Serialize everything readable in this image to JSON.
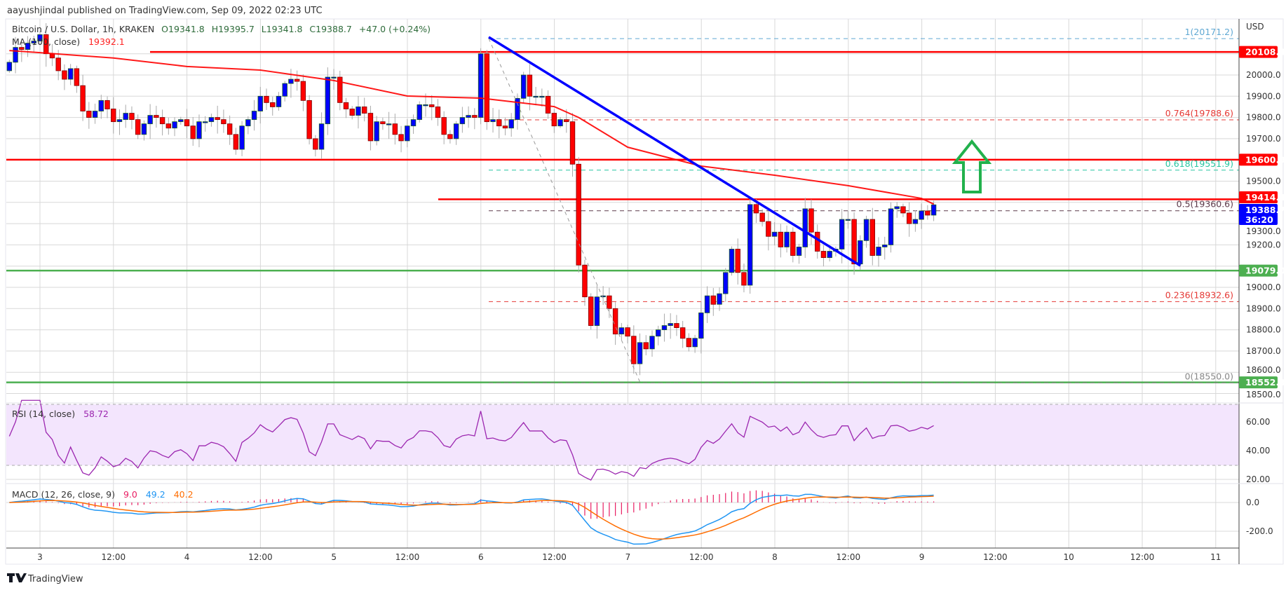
{
  "header": {
    "published": "aayushjindal published on TradingView.com, Sep 09, 2022 02:23 UTC"
  },
  "legend": {
    "symbol": "Bitcoin / U.S. Dollar, 1h, KRAKEN",
    "open": "O19341.8",
    "high": "H19395.7",
    "low": "L19341.8",
    "close": "C19388.7",
    "change": "+47.0 (+0.24%)",
    "ma_label": "MA (100, close)",
    "ma_value": "19392.1",
    "rsi_label": "RSI (14, close)",
    "rsi_value": "58.72",
    "macd_label": "MACD (12, 26, close, 9)",
    "macd_hist": "9.0",
    "macd_line": "49.2",
    "macd_signal": "40.2"
  },
  "price_axis": {
    "currency": "USD",
    "ticks": [
      "20000.0",
      "19900.0",
      "19800.0",
      "19700.0",
      "19500.0",
      "19300.0",
      "19200.0",
      "19000.0",
      "18900.0",
      "18800.0",
      "18700.0",
      "18600.0",
      "18500.0"
    ],
    "tick_values": [
      20000,
      19900,
      19800,
      19700,
      19500,
      19300,
      19200,
      19000,
      18900,
      18800,
      18700,
      18600,
      18500
    ],
    "rsi_ticks": [
      "60.00",
      "40.00",
      "20.00"
    ],
    "macd_ticks": [
      "0.0",
      "-200.0"
    ]
  },
  "badges": [
    {
      "label": "20108.4",
      "value": 20108.4,
      "color": "#ff0000"
    },
    {
      "label": "19600.9",
      "value": 19600.9,
      "color": "#ff0000"
    },
    {
      "label": "19414.4",
      "value": 19414.4,
      "color": "#ff0000"
    },
    {
      "label": "19079.0",
      "value": 19079.0,
      "color": "#4caf50"
    },
    {
      "label": "18552.3",
      "value": 18552.3,
      "color": "#4caf50"
    }
  ],
  "last_price": {
    "label": "19388.7",
    "countdown": "36:20",
    "color": "#0000ff"
  },
  "fib_levels": [
    {
      "label": "1(20171.2)",
      "value": 20171.2,
      "color": "#5fa8d3"
    },
    {
      "label": "0.764(19788.6)",
      "value": 19788.6,
      "color": "#e53935"
    },
    {
      "label": "0.618(19551.9)",
      "value": 19551.9,
      "color": "#26c6a0"
    },
    {
      "label": "0.5(19360.6)",
      "value": 19360.6,
      "color": "#5d3a4a"
    },
    {
      "label": "0.236(18932.6)",
      "value": 18932.6,
      "color": "#e53935"
    },
    {
      "label": "0(18550.0)",
      "value": 18550.0,
      "color": "#888888"
    }
  ],
  "time_axis": [
    "3",
    "12:00",
    "4",
    "12:00",
    "5",
    "12:00",
    "6",
    "12:00",
    "7",
    "12:00",
    "8",
    "12:00",
    "9",
    "12:00",
    "10",
    "12:00",
    "11"
  ],
  "footer": {
    "brand": "TradingView"
  },
  "chart_data": {
    "type": "candlestick",
    "title": "Bitcoin / U.S. Dollar, 1h, KRAKEN",
    "x_start_hours_from_sep3": -5,
    "ylim": [
      18500,
      20200
    ],
    "closes": [
      20060,
      20130,
      20120,
      20150,
      20160,
      20190,
      20100,
      20080,
      20020,
      19980,
      20030,
      19950,
      19830,
      19800,
      19830,
      19880,
      19840,
      19780,
      19790,
      19820,
      19790,
      19720,
      19770,
      19810,
      19800,
      19770,
      19750,
      19780,
      19790,
      19760,
      19700,
      19780,
      19780,
      19800,
      19790,
      19770,
      19720,
      19650,
      19760,
      19790,
      19830,
      19900,
      19870,
      19850,
      19900,
      19960,
      19980,
      19970,
      19880,
      19700,
      19650,
      19770,
      19990,
      19990,
      19870,
      19840,
      19810,
      19850,
      19820,
      19690,
      19780,
      19770,
      19770,
      19720,
      19690,
      19760,
      19790,
      19860,
      19860,
      19850,
      19800,
      19720,
      19700,
      19770,
      19800,
      19810,
      19800,
      20100,
      19780,
      19790,
      19760,
      19750,
      19790,
      19890,
      20000,
      19900,
      19900,
      19900,
      19820,
      19760,
      19790,
      19780,
      19580,
      19105,
      18955,
      18820,
      18955,
      18960,
      18900,
      18780,
      18810,
      18770,
      18640,
      18740,
      18710,
      18770,
      18800,
      18820,
      18830,
      18810,
      18760,
      18720,
      18760,
      18880,
      18960,
      18920,
      18970,
      19070,
      19180,
      19070,
      19010,
      19390,
      19350,
      19310,
      19240,
      19260,
      19190,
      19260,
      19150,
      19190,
      19370,
      19260,
      19170,
      19140,
      19170,
      19180,
      19320,
      19320,
      19110,
      19220,
      19320,
      19150,
      19190,
      19200,
      19370,
      19380,
      19350,
      19300,
      19320,
      19360,
      19340,
      19388.7
    ],
    "ma100": {
      "hours": [
        -5,
        0,
        12,
        24,
        36,
        48,
        60,
        72,
        84,
        88,
        96,
        108,
        120,
        132,
        144,
        146
      ],
      "values": [
        20115,
        20105,
        20080,
        20040,
        20023,
        19974,
        19901,
        19891,
        19851,
        19800,
        19660,
        19571,
        19528,
        19479,
        19419,
        19392.1
      ]
    },
    "horizontal_levels": {
      "resistance": [
        20108.4,
        19600.9,
        19414.4
      ],
      "support": [
        19079.0,
        18552.3
      ]
    },
    "trendline": {
      "from": {
        "hour": 72,
        "price": 20175
      },
      "to": {
        "hour": 133,
        "price": 19100
      }
    }
  }
}
